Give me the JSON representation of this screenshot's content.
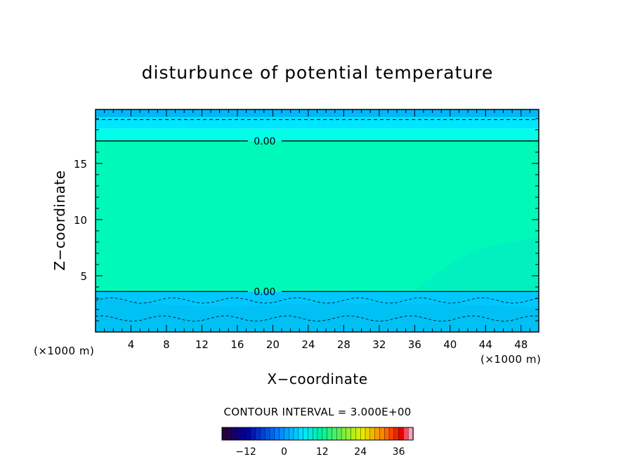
{
  "chart_data": {
    "type": "heatmap",
    "title": "disturbunce of potential temperature",
    "xlabel": "X−coordinate",
    "ylabel": "Z−coordinate",
    "x_unit_left": "(×1000 m)",
    "x_unit_right": "(×1000 m)",
    "xlim": [
      0,
      50
    ],
    "ylim": [
      0,
      19.8
    ],
    "xticks": [
      4,
      8,
      12,
      16,
      20,
      24,
      28,
      32,
      36,
      40,
      44,
      48
    ],
    "yticks": [
      5,
      10,
      15
    ],
    "grid": false,
    "contour_interval_label": "CONTOUR INTERVAL = 3.000E+00",
    "contour_interval": 3.0,
    "zero_contours": [
      {
        "label": "0.00",
        "z": 17.0,
        "label_x": 17.5
      },
      {
        "label": "0.00",
        "z": 3.6,
        "label_x": 17.5
      }
    ],
    "dashed_contours_z": [
      18.9
    ],
    "regions": [
      {
        "z_from": 19.1,
        "z_to": 19.8,
        "value": -4.5,
        "color": "#00b8f8"
      },
      {
        "z_from": 18.1,
        "z_to": 19.1,
        "value": -3,
        "color": "#00e6ff"
      },
      {
        "z_from": 17.0,
        "z_to": 18.1,
        "value": -1.5,
        "color": "#00ffe8"
      },
      {
        "z_from": 3.6,
        "z_to": 17.0,
        "value": 1.5,
        "color": "#00f8b8"
      },
      {
        "z_from": 0,
        "z_to": 3.6,
        "value": -3,
        "color": "#00c8ff"
      }
    ],
    "colorbar": {
      "ticks": [
        -12,
        0,
        12,
        24,
        36
      ],
      "range": [
        -19.5,
        40.5
      ],
      "step": 1.5
    },
    "colors": {
      "upper_band": "#00b8f8",
      "middle": "#00f8b8",
      "lower": "#00c8ff"
    }
  }
}
